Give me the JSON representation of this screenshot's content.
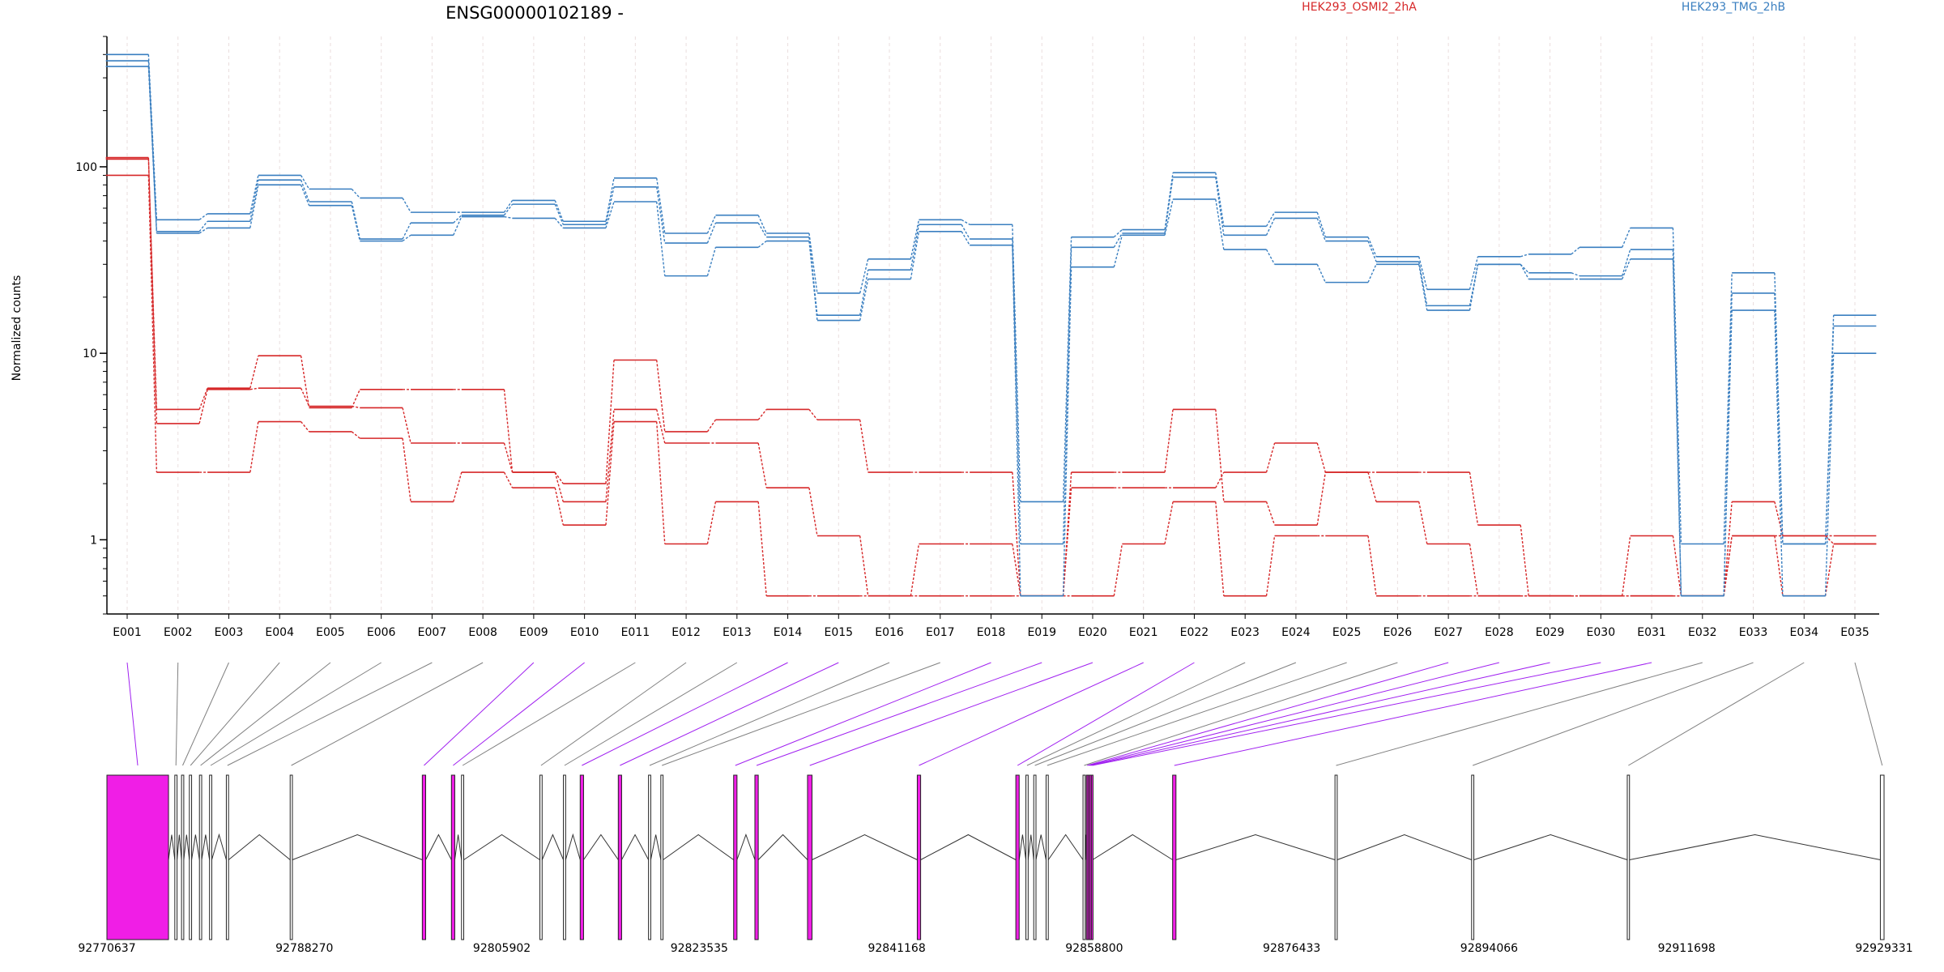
{
  "chart_data": [
    {
      "type": "line",
      "title": "ENSG00000102189 -",
      "ylabel": "Normalized counts",
      "xlabel": "",
      "yscale": "log",
      "ylim": [
        0.4,
        500
      ],
      "yticks": [
        "1",
        "10",
        "100"
      ],
      "grid": "vertical dashed at each exon",
      "legend_position": "top-right",
      "categories": [
        "E001",
        "E002",
        "E003",
        "E004",
        "E005",
        "E006",
        "E007",
        "E008",
        "E009",
        "E010",
        "E011",
        "E012",
        "E013",
        "E014",
        "E015",
        "E016",
        "E017",
        "E018",
        "E019",
        "E020",
        "E021",
        "E022",
        "E023",
        "E024",
        "E025",
        "E026",
        "E027",
        "E028",
        "E029",
        "E030",
        "E031",
        "E032",
        "E033",
        "E034",
        "E035"
      ],
      "series": [
        {
          "name": "HEK293_OSMI2_2hA",
          "group": "OSMI2",
          "color": "#d62728",
          "values": [
            110,
            5,
            6.5,
            9.7,
            5.1,
            6.4,
            6.4,
            6.4,
            2.3,
            2,
            9.2,
            3.8,
            4.4,
            5,
            4.4,
            2.3,
            2.3,
            2.3,
            0.5,
            2.3,
            2.3,
            5,
            1.6,
            1.2,
            2.3,
            2.3,
            2.3,
            1.2,
            0.5,
            0.5,
            1.05,
            0.5,
            1.05,
            1.05,
            1.05
          ]
        },
        {
          "name": "",
          "group": "OSMI2",
          "color": "#d62728",
          "values": [
            112,
            4.2,
            6.4,
            6.5,
            5.2,
            5.1,
            3.3,
            3.3,
            2.3,
            1.6,
            5,
            3.3,
            3.3,
            1.9,
            1.05,
            0.5,
            0.5,
            0.5,
            0.5,
            1.9,
            1.9,
            1.9,
            2.3,
            3.3,
            2.3,
            1.6,
            0.95,
            0.5,
            0.5,
            0.5,
            0.5,
            0.5,
            1.6,
            1.05,
            0.95
          ]
        },
        {
          "name": "",
          "group": "OSMI2",
          "color": "#d62728",
          "values": [
            90,
            2.3,
            2.3,
            4.3,
            3.8,
            3.5,
            1.6,
            2.3,
            1.9,
            1.2,
            4.3,
            0.95,
            1.6,
            0.5,
            0.5,
            0.5,
            0.95,
            0.95,
            0.5,
            0.5,
            0.95,
            1.6,
            0.5,
            1.05,
            1.05,
            0.5,
            0.5,
            0.5,
            0.5,
            0.5,
            0.5,
            0.5,
            1.05,
            0.5,
            0.95
          ]
        },
        {
          "name": "HEK293_TMG_2hB",
          "group": "TMG",
          "color": "#3a7fc0",
          "values": [
            400,
            52,
            56,
            90,
            76,
            68,
            57,
            57,
            66,
            51,
            87,
            44,
            55,
            44,
            21,
            32,
            52,
            49,
            1.6,
            42,
            46,
            93,
            48,
            57,
            42,
            33,
            22,
            33,
            34,
            37,
            47,
            0.95,
            27,
            0.95,
            16
          ]
        },
        {
          "name": "",
          "group": "TMG",
          "color": "#3a7fc0",
          "values": [
            370,
            45,
            51,
            85,
            65,
            41,
            50,
            55,
            63,
            49,
            78,
            39,
            50,
            42,
            16,
            28,
            49,
            41,
            0.95,
            37,
            44,
            88,
            43,
            53,
            40,
            31,
            18,
            30,
            27,
            26,
            36,
            0.5,
            21,
            0.95,
            14
          ]
        },
        {
          "name": "",
          "group": "TMG",
          "color": "#3a7fc0",
          "values": [
            345,
            44,
            47,
            80,
            62,
            40,
            43,
            54,
            53,
            47,
            65,
            26,
            37,
            40,
            15,
            25,
            45,
            38,
            0.5,
            29,
            43,
            67,
            36,
            30,
            24,
            30,
            17,
            30,
            25,
            25,
            32,
            0.5,
            17,
            0.5,
            10
          ]
        }
      ]
    },
    {
      "type": "gene-model",
      "axis_ticks": [
        "92770637",
        "92788270",
        "92805902",
        "92823535",
        "92841168",
        "92858800",
        "92876433",
        "92894066",
        "92911698",
        "92929331"
      ],
      "axis_range": [
        92770637,
        92929331
      ],
      "exon_colors": {
        "highlighted": "#f01ee6",
        "normal": "#ffffff",
        "highlighted_connector": "#a020f0",
        "connector": "#808080"
      },
      "exons": [
        {
          "id": "E001",
          "start": 92770637,
          "end": 92776137,
          "highlighted": true
        },
        {
          "id": "E002",
          "start": 92776700,
          "end": 92776900,
          "highlighted": false
        },
        {
          "id": "E003",
          "start": 92777300,
          "end": 92777500,
          "highlighted": false
        },
        {
          "id": "E004",
          "start": 92778000,
          "end": 92778200,
          "highlighted": false
        },
        {
          "id": "E005",
          "start": 92778900,
          "end": 92779100,
          "highlighted": false
        },
        {
          "id": "E006",
          "start": 92779800,
          "end": 92780000,
          "highlighted": false
        },
        {
          "id": "E007",
          "start": 92781300,
          "end": 92781500,
          "highlighted": false
        },
        {
          "id": "E008",
          "start": 92787000,
          "end": 92787200,
          "highlighted": false
        },
        {
          "id": "E009",
          "start": 92798800,
          "end": 92799100,
          "highlighted": true
        },
        {
          "id": "E010",
          "start": 92801400,
          "end": 92801700,
          "highlighted": true
        },
        {
          "id": "E011",
          "start": 92802300,
          "end": 92802500,
          "highlighted": false
        },
        {
          "id": "E012",
          "start": 92809300,
          "end": 92809500,
          "highlighted": false
        },
        {
          "id": "E013",
          "start": 92811400,
          "end": 92811600,
          "highlighted": false
        },
        {
          "id": "E014",
          "start": 92812900,
          "end": 92813200,
          "highlighted": true
        },
        {
          "id": "E015",
          "start": 92816300,
          "end": 92816600,
          "highlighted": true
        },
        {
          "id": "E016",
          "start": 92819000,
          "end": 92819200,
          "highlighted": false
        },
        {
          "id": "E017",
          "start": 92820100,
          "end": 92820300,
          "highlighted": false
        },
        {
          "id": "E018",
          "start": 92826600,
          "end": 92826900,
          "highlighted": true
        },
        {
          "id": "E019",
          "start": 92828500,
          "end": 92828800,
          "highlighted": true
        },
        {
          "id": "E020",
          "start": 92833200,
          "end": 92833600,
          "highlighted": true
        },
        {
          "id": "E021",
          "start": 92843000,
          "end": 92843300,
          "highlighted": true
        },
        {
          "id": "E022",
          "start": 92851800,
          "end": 92852100,
          "highlighted": true
        },
        {
          "id": "E023",
          "start": 92852700,
          "end": 92852900,
          "highlighted": false
        },
        {
          "id": "E024",
          "start": 92853400,
          "end": 92853600,
          "highlighted": false
        },
        {
          "id": "E025",
          "start": 92854500,
          "end": 92854700,
          "highlighted": false
        },
        {
          "id": "E026",
          "start": 92857800,
          "end": 92858000,
          "highlighted": false
        },
        {
          "id": "E027",
          "start": 92858100,
          "end": 92858200,
          "highlighted": true
        },
        {
          "id": "E028",
          "start": 92858250,
          "end": 92858350,
          "highlighted": true
        },
        {
          "id": "E029",
          "start": 92858400,
          "end": 92858500,
          "highlighted": true
        },
        {
          "id": "E030",
          "start": 92858550,
          "end": 92858650,
          "highlighted": true
        },
        {
          "id": "E031",
          "start": 92865800,
          "end": 92866100,
          "highlighted": true
        },
        {
          "id": "E032",
          "start": 92880300,
          "end": 92880500,
          "highlighted": false
        },
        {
          "id": "E033",
          "start": 92892500,
          "end": 92892700,
          "highlighted": false
        },
        {
          "id": "E034",
          "start": 92906400,
          "end": 92906600,
          "highlighted": false
        },
        {
          "id": "E035",
          "start": 92929000,
          "end": 92929331,
          "highlighted": false
        }
      ]
    }
  ]
}
